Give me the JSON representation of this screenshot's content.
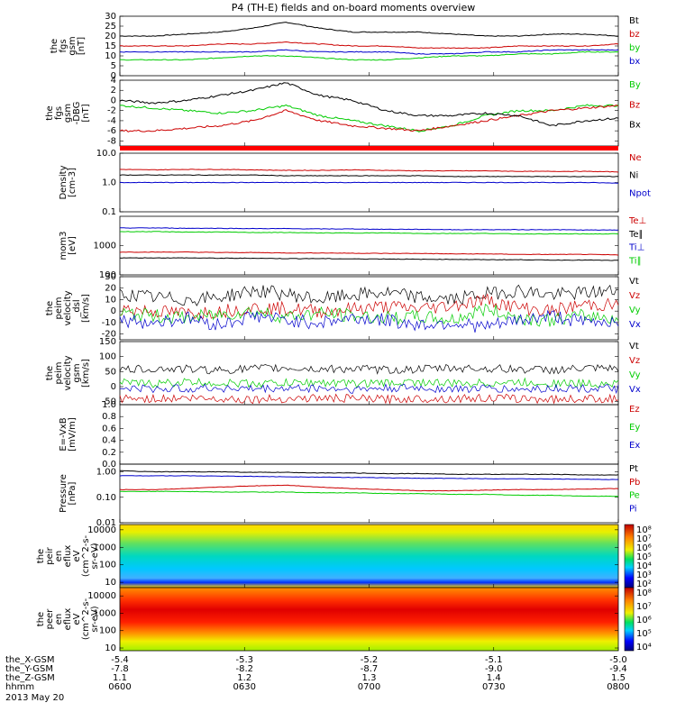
{
  "chart_data": {
    "type": "line",
    "title": "P4 (TH-E) fields and on-board moments overview",
    "date_label": "2013 May 20",
    "time_range": [
      "0600",
      "0800"
    ],
    "xticks": {
      "rows": [
        {
          "name": "the_X-GSM",
          "values": [
            "-5.4",
            "-5.3",
            "-5.2",
            "-5.1",
            "-5.0"
          ]
        },
        {
          "name": "the_Y-GSM",
          "values": [
            "-7.8",
            "-8.2",
            "-8.7",
            "-9.0",
            "-9.4"
          ]
        },
        {
          "name": "the_Z-GSM",
          "values": [
            "1.1",
            "1.2",
            "1.3",
            "1.4",
            "1.5"
          ]
        },
        {
          "name": "hhmm",
          "values": [
            "0600",
            "0630",
            "0700",
            "0730",
            "0800"
          ]
        }
      ]
    },
    "panels": [
      {
        "id": "fgs-mag",
        "ylabel": [
          "the",
          "fgs",
          "gsm",
          "[nT]"
        ],
        "yticks": [
          "30",
          "25",
          "20",
          "15",
          "10",
          "5",
          "0"
        ],
        "ylim": [
          0,
          30
        ],
        "log": false,
        "series": [
          {
            "name": "Bt",
            "color": "#000000",
            "values": [
              20,
              20,
              21,
              22,
              24,
              27,
              24,
              22,
              22,
              22,
              21,
              20,
              20,
              21,
              21,
              20
            ]
          },
          {
            "name": "bz",
            "color": "#cc0000",
            "values": [
              15,
              15,
              15,
              16,
              16,
              17,
              16,
              15,
              15,
              14,
              14,
              14,
              15,
              15,
              15,
              16
            ]
          },
          {
            "name": "by",
            "color": "#00cc00",
            "values": [
              8,
              8,
              8,
              9,
              10,
              10,
              9,
              8,
              8,
              9,
              10,
              10,
              11,
              11,
              12,
              12
            ]
          },
          {
            "name": "bx",
            "color": "#0000cc",
            "values": [
              12,
              12,
              12,
              12,
              12,
              13,
              12,
              12,
              12,
              11,
              11,
              12,
              12,
              13,
              13,
              13
            ]
          }
        ],
        "legend_order": [
          "Bt",
          "bz",
          "by",
          "bx"
        ]
      },
      {
        "id": "fgs-dbg",
        "ylabel": [
          "the",
          "fgs",
          "gsm",
          "-DBG",
          "[nT]"
        ],
        "yticks": [
          "4",
          "2",
          "0",
          "-2",
          "-4",
          "-6",
          "-8"
        ],
        "ylim": [
          -9,
          4
        ],
        "log": false,
        "series": [
          {
            "name": "By",
            "color": "#00cc00",
            "values": [
              -1,
              -1.5,
              -2,
              -2.5,
              -2,
              -1,
              -3,
              -4,
              -5,
              -6,
              -5,
              -3,
              -2,
              -2,
              -1,
              -1
            ]
          },
          {
            "name": "Bz",
            "color": "#cc0000",
            "values": [
              -6,
              -6,
              -5.5,
              -5,
              -4,
              -2,
              -4,
              -5,
              -5.5,
              -6,
              -5,
              -4,
              -3,
              -2,
              -1.5,
              -1
            ]
          },
          {
            "name": "Bx",
            "color": "#000000",
            "values": [
              0,
              -0.5,
              0,
              1,
              2,
              3.5,
              1,
              0,
              -2,
              -3,
              -3,
              -2.5,
              -3,
              -5,
              -4,
              -3.5
            ]
          }
        ],
        "legend_order": [
          "By",
          "Bz",
          "Bx"
        ]
      },
      {
        "id": "density",
        "ylabel": [
          "Density",
          "[cm-3]"
        ],
        "yticks": [
          "10.0",
          "1.0",
          "0.1"
        ],
        "ylim": [
          0.1,
          10
        ],
        "log": true,
        "series": [
          {
            "name": "Ne",
            "color": "#cc0000",
            "values": [
              2.8,
              2.7,
              2.8,
              2.8,
              2.7,
              2.6,
              2.6,
              2.7,
              2.6,
              2.5,
              2.5,
              2.5,
              2.4,
              2.4,
              2.4,
              2.3
            ]
          },
          {
            "name": "Ni",
            "color": "#000000",
            "values": [
              1.8,
              1.8,
              1.8,
              1.8,
              1.8,
              1.7,
              1.7,
              1.7,
              1.7,
              1.7,
              1.6,
              1.6,
              1.6,
              1.6,
              1.6,
              1.6
            ]
          },
          {
            "name": "Npot",
            "color": "#0000cc",
            "values": [
              1,
              1,
              1,
              1,
              1,
              1,
              1,
              1,
              1,
              1,
              1,
              1,
              1,
              1,
              1,
              0.95
            ]
          }
        ],
        "legend_order": [
          "Ne",
          "Ni",
          "Npot"
        ]
      },
      {
        "id": "temperature",
        "ylabel": [
          "mom3",
          "[eV]"
        ],
        "yticks": [
          "1000",
          "100"
        ],
        "ylim": [
          100,
          10000
        ],
        "log": true,
        "series": [
          {
            "name": "Te⊥",
            "color": "#cc0000",
            "values": [
              600,
              600,
              600,
              580,
              580,
              560,
              560,
              550,
              540,
              540,
              520,
              520,
              500,
              500,
              500,
              480
            ]
          },
          {
            "name": "Te∥",
            "color": "#000000",
            "values": [
              380,
              380,
              380,
              370,
              370,
              360,
              360,
              350,
              350,
              340,
              340,
              330,
              330,
              320,
              320,
              310
            ]
          },
          {
            "name": "Ti⊥",
            "color": "#0000cc",
            "values": [
              4000,
              4000,
              3900,
              3900,
              3800,
              3800,
              3700,
              3700,
              3600,
              3600,
              3500,
              3500,
              3500,
              3500,
              3400,
              3400
            ]
          },
          {
            "name": "Ti∥",
            "color": "#00cc00",
            "values": [
              3000,
              3000,
              2900,
              2900,
              2800,
              2800,
              2700,
              2700,
              2700,
              2600,
              2600,
              2600,
              2500,
              2500,
              2500,
              2500
            ]
          }
        ],
        "legend_order": [
          "Te⊥",
          "Te∥",
          "Ti⊥",
          "Ti∥"
        ]
      },
      {
        "id": "peim-velocity-dsl",
        "ylabel": [
          "the",
          "peim",
          "velocity",
          "_dsl",
          "[km/s]"
        ],
        "yticks": [
          "30",
          "20",
          "10",
          "0",
          "-10",
          "-20"
        ],
        "ylim": [
          -25,
          30
        ],
        "log": false,
        "series": [
          {
            "name": "Vt",
            "color": "#000000",
            "values": [
              15,
              12,
              10,
              12,
              18,
              15,
              10,
              14,
              16,
              12,
              10,
              15,
              18,
              14,
              16,
              18
            ]
          },
          {
            "name": "Vz",
            "color": "#cc0000",
            "values": [
              2,
              0,
              -2,
              0,
              3,
              2,
              0,
              2,
              4,
              2,
              5,
              10,
              3,
              0,
              6,
              5
            ]
          },
          {
            "name": "Vy",
            "color": "#00cc00",
            "values": [
              -2,
              -4,
              -6,
              -3,
              0,
              -5,
              -2,
              -4,
              -6,
              -5,
              -8,
              2,
              -6,
              -8,
              -4,
              -6
            ]
          },
          {
            "name": "Vx",
            "color": "#0000cc",
            "values": [
              -8,
              -10,
              -6,
              -12,
              -4,
              -8,
              -10,
              -6,
              -8,
              -12,
              -10,
              -14,
              -8,
              -4,
              -10,
              -8
            ]
          }
        ],
        "legend_order": [
          "Vt",
          "Vz",
          "Vy",
          "Vx"
        ]
      },
      {
        "id": "peim-velocity-gsm",
        "ylabel": [
          "the",
          "peim",
          "velocity",
          "gsm",
          "[km/s]"
        ],
        "yticks": [
          "150",
          "100",
          "50",
          "0",
          "-50"
        ],
        "ylim": [
          -60,
          150
        ],
        "log": false,
        "series": [
          {
            "name": "Vt",
            "color": "#000000",
            "values": [
              55,
              60,
              58,
              55,
              60,
              62,
              58,
              60,
              55,
              58,
              62,
              60,
              58,
              55,
              60,
              58
            ]
          },
          {
            "name": "Vz",
            "color": "#cc0000",
            "values": [
              -40,
              -40,
              -38,
              -40,
              -42,
              -40,
              -38,
              -40,
              -42,
              -40,
              -40,
              -38,
              -40,
              -42,
              -40,
              -40
            ]
          },
          {
            "name": "Vy",
            "color": "#00cc00",
            "values": [
              12,
              10,
              15,
              12,
              10,
              12,
              14,
              10,
              12,
              15,
              10,
              12,
              14,
              12,
              10,
              12
            ]
          },
          {
            "name": "Vx",
            "color": "#0000cc",
            "values": [
              -5,
              -8,
              -6,
              -5,
              -8,
              -6,
              -5,
              -10,
              -6,
              -5,
              -8,
              -6,
              -10,
              -5,
              -6,
              -8
            ]
          }
        ],
        "legend_order": [
          "Vt",
          "Vz",
          "Vy",
          "Vx"
        ]
      },
      {
        "id": "e-field",
        "ylabel": [
          "E=-VxB",
          "[mV/m]"
        ],
        "yticks": [
          "1.0",
          "0.8",
          "0.6",
          "0.4",
          "0.2",
          "0.0"
        ],
        "ylim": [
          0,
          1
        ],
        "log": false,
        "series": [
          {
            "name": "Ez",
            "color": "#cc0000",
            "values": []
          },
          {
            "name": "Ey",
            "color": "#00cc00",
            "values": []
          },
          {
            "name": "Ex",
            "color": "#0000cc",
            "values": []
          }
        ],
        "legend_order": [
          "Ez",
          "Ey",
          "Ex"
        ]
      },
      {
        "id": "pressure",
        "ylabel": [
          "Pressure",
          "[nPa]"
        ],
        "yticks": [
          "1.00",
          "0.10",
          "0.01"
        ],
        "ylim": [
          0.01,
          2
        ],
        "log": true,
        "series": [
          {
            "name": "Pt",
            "color": "#000000",
            "values": [
              1.1,
              1.0,
              1.0,
              1.0,
              0.95,
              0.95,
              0.9,
              0.9,
              0.85,
              0.85,
              0.8,
              0.8,
              0.8,
              0.8,
              0.75,
              0.75
            ]
          },
          {
            "name": "Pb",
            "color": "#cc0000",
            "values": [
              0.2,
              0.2,
              0.22,
              0.25,
              0.28,
              0.3,
              0.25,
              0.22,
              0.2,
              0.18,
              0.18,
              0.19,
              0.2,
              0.2,
              0.21,
              0.22
            ]
          },
          {
            "name": "Pe",
            "color": "#00cc00",
            "values": [
              0.17,
              0.17,
              0.17,
              0.16,
              0.16,
              0.16,
              0.15,
              0.15,
              0.14,
              0.14,
              0.13,
              0.13,
              0.12,
              0.12,
              0.11,
              0.11
            ]
          },
          {
            "name": "Pi",
            "color": "#0000cc",
            "values": [
              0.7,
              0.7,
              0.7,
              0.68,
              0.66,
              0.64,
              0.62,
              0.6,
              0.58,
              0.56,
              0.55,
              0.54,
              0.53,
              0.52,
              0.51,
              0.5
            ]
          }
        ],
        "legend_order": [
          "Pt",
          "Pb",
          "Pe",
          "Pi"
        ]
      },
      {
        "id": "peir-energy-spectrogram",
        "type": "heatmap",
        "ylabel": [
          "the",
          "peir",
          "en",
          "eflux",
          "eV",
          "(cm^2-s-",
          "sr-eV)"
        ],
        "yticks": [
          "10000",
          "1000",
          "100",
          "10"
        ],
        "ylim": [
          5,
          20000
        ],
        "log": true,
        "colorbar": {
          "ticks": [
            "10⁸",
            "10⁷",
            "10⁶",
            "10⁵",
            "10⁴",
            "10³",
            "10²"
          ]
        }
      },
      {
        "id": "peer-energy-spectrogram",
        "type": "heatmap",
        "ylabel": [
          "the",
          "peer",
          "en",
          "eflux",
          "eV",
          "(cm^2-s-",
          "sr-eV)"
        ],
        "yticks": [
          "10000",
          "1000",
          "100",
          "10"
        ],
        "ylim": [
          7,
          30000
        ],
        "log": true,
        "colorbar": {
          "ticks": [
            "10⁸",
            "10⁷",
            "10⁶",
            "10⁵",
            "10⁴"
          ]
        }
      }
    ]
  }
}
